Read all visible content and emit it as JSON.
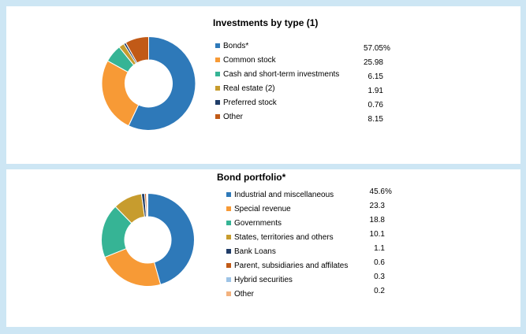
{
  "page": {
    "background_color": "#CDE6F4",
    "card_color": "#FFFFFF"
  },
  "chart_data": [
    {
      "type": "pie",
      "subtype": "donut",
      "title": "Investments by type (1)",
      "categories": [
        "Bonds*",
        "Common stock",
        "Cash and short-term investments",
        "Real estate (2)",
        "Preferred stock",
        "Other"
      ],
      "values": [
        57.05,
        25.98,
        6.15,
        1.91,
        0.76,
        8.15
      ],
      "value_labels": [
        "57.05%",
        "25.98",
        "6.15",
        "1.91",
        "0.76",
        "8.15"
      ],
      "colors": [
        "#2E79B9",
        "#F79A36",
        "#36B495",
        "#C79C2E",
        "#203D68",
        "#C15A17"
      ],
      "legend_position": "right",
      "start_angle_deg": 0,
      "direction": "clockwise",
      "donut_hole_ratio": 0.5,
      "segment_separator_color": "#FFFFFF"
    },
    {
      "type": "pie",
      "subtype": "donut",
      "title": "Bond portfolio*",
      "categories": [
        "Industrial and miscellaneous",
        "Special revenue",
        "Governments",
        "States, territories and others",
        "Bank Loans",
        "Parent, subsidiaries and affilates",
        "Hybrid securities",
        "Other"
      ],
      "values": [
        45.6,
        23.3,
        18.8,
        10.1,
        1.1,
        0.6,
        0.3,
        0.2
      ],
      "value_labels": [
        "45.6%",
        "23.3",
        "18.8",
        "10.1",
        "1.1",
        "0.6",
        "0.3",
        "0.2"
      ],
      "colors": [
        "#2E79B9",
        "#F79A36",
        "#36B495",
        "#C79C2E",
        "#203D68",
        "#C15A17",
        "#9DC3E6",
        "#F3B27E"
      ],
      "legend_position": "right",
      "start_angle_deg": 0,
      "direction": "clockwise",
      "donut_hole_ratio": 0.5,
      "segment_separator_color": "#FFFFFF"
    }
  ]
}
